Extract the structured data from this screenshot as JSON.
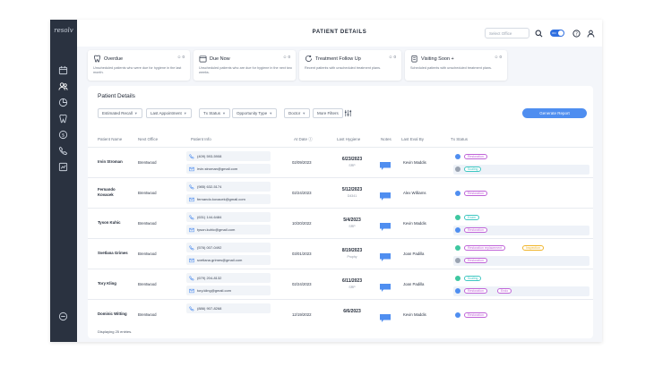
{
  "app": {
    "logo": "resolv",
    "page_title": "PATIENT DETAILS"
  },
  "topbar": {
    "search_placeholder": "Select Office",
    "toggle_label": "ON"
  },
  "colors": {
    "sidebar": "#2a3240",
    "accent": "#4f8ef0",
    "restoration": "#c064d8",
    "scaling": "#3ec7c2",
    "inspection": "#f0b429",
    "note": "#4f8ef0"
  },
  "cards": [
    {
      "title": "Overdue",
      "count": "0",
      "desc": "Unscheduled patients who were due for hygiene in the last month.",
      "icon": "tooth-icon"
    },
    {
      "title": "Due Now",
      "count": "0",
      "desc": "Unscheduled patients who are due for hygiene in the next two weeks.",
      "icon": "calendar-icon"
    },
    {
      "title": "Treatment Follow Up",
      "count": "0",
      "desc": "Recent patients with unscheduled treatment plans.",
      "icon": "rotate-icon"
    },
    {
      "title": "Visiting Soon +",
      "count": "0",
      "desc": "Scheduled patients with unscheduled treatment plans.",
      "icon": "clipboard-icon"
    }
  ],
  "panel": {
    "title": "Patient Details",
    "filters": [
      "Estimated Recall",
      "Last Appointment",
      "Tx Status",
      "Opportunity Type",
      "Doctor",
      "More Filters"
    ],
    "generate_label": "Generate Report",
    "footer": "Displaying 25 entries."
  },
  "columns": [
    "Patient Name",
    "Next Office",
    "Patient Info",
    "At Date",
    "Last Hygiene",
    "Notes",
    "Last Eval By",
    "Tx Status"
  ],
  "rows": [
    {
      "name": [
        "Irvin Stroman"
      ],
      "office": "Brentwood",
      "phone": "(409) 593-5908",
      "email": "irvin.stroman@gmail.com",
      "date": "02/09/2023",
      "hyg_date": "6/23/2023",
      "hyg_sub": "SRP",
      "eval": "Kevin Maddis",
      "tx": [
        {
          "dot": "#4f8ef0",
          "tags": [
            {
              "label": "Restoration",
              "c": "#c064d8"
            }
          ]
        },
        {
          "dot": "#9aa3b1",
          "tags": [
            {
              "label": "Scaling",
              "c": "#3ec7c2"
            }
          ]
        }
      ]
    },
    {
      "name": [
        "Fernando",
        "Kovacek"
      ],
      "office": "Brentwood",
      "phone": "(985) 632-5174",
      "email": "fernando.kovacek@gmail.com",
      "date": "02/24/2023",
      "hyg_date": "5/12/2023",
      "hyg_sub": "D4341",
      "eval": "Alex Williams",
      "tx": [
        {
          "dot": "#4f8ef0",
          "tags": [
            {
              "label": "Restoration",
              "c": "#c064d8"
            }
          ]
        }
      ]
    },
    {
      "name": [
        "Tyson Kuhic"
      ],
      "office": "Brentwood",
      "phone": "(631) 144-6484",
      "email": "tyson.kuhic@gmail.com",
      "date": "10/20/2022",
      "hyg_date": "5/4/2023",
      "hyg_sub": "SRP",
      "eval": "Kevin Maddis",
      "tx": [
        {
          "dot": "#3ec7a0",
          "tags": [
            {
              "label": "Exam",
              "c": "#3ec7c2"
            }
          ]
        },
        {
          "dot": "#4f8ef0",
          "tags": [
            {
              "label": "Restoration",
              "c": "#c064d8"
            }
          ]
        }
      ]
    },
    {
      "name": [
        "Svetlana Grimes"
      ],
      "office": "Brentwood",
      "phone": "(576) 007-0492",
      "email": "svetlana.grimes@gmail.com",
      "date": "03/01/2023",
      "hyg_date": "8/19/2023",
      "hyg_sub": "Prophy",
      "eval": "Joan Padilla",
      "tx": [
        {
          "dot": "#3ec7a0",
          "tags": [
            {
              "label": "Restoration replacement",
              "c": "#c064d8"
            },
            {
              "label": "Inspection",
              "c": "#f0b429"
            }
          ]
        },
        {
          "dot": "#9aa3b1",
          "tags": [
            {
              "label": "Restoration",
              "c": "#c064d8"
            }
          ]
        }
      ]
    },
    {
      "name": [
        "Tory Kling"
      ],
      "office": "Brentwood",
      "phone": "(679) 204-8132",
      "email": "tory.kling@gmail.com",
      "date": "02/24/2023",
      "hyg_date": "6/11/2023",
      "hyg_sub": "SRP",
      "eval": "Joan Padilla",
      "tx": [
        {
          "dot": "#3ec7a0",
          "tags": [
            {
              "label": "Scaling",
              "c": "#3ec7c2"
            }
          ]
        },
        {
          "dot": "#4f8ef0",
          "tags": [
            {
              "label": "Restoration",
              "c": "#c064d8"
            },
            {
              "label": "Endo",
              "c": "#c064d8"
            }
          ]
        }
      ]
    },
    {
      "name": [
        "Dominic Witting"
      ],
      "office": "Brentwood",
      "phone": "(886) 907-8268",
      "email": "",
      "date": "12/19/2022",
      "hyg_date": "6/6/2023",
      "hyg_sub": "",
      "eval": "Kevin Maddis",
      "tx": [
        {
          "dot": "#4f8ef0",
          "tags": [
            {
              "label": "Restoration",
              "c": "#c064d8"
            }
          ]
        }
      ]
    }
  ]
}
